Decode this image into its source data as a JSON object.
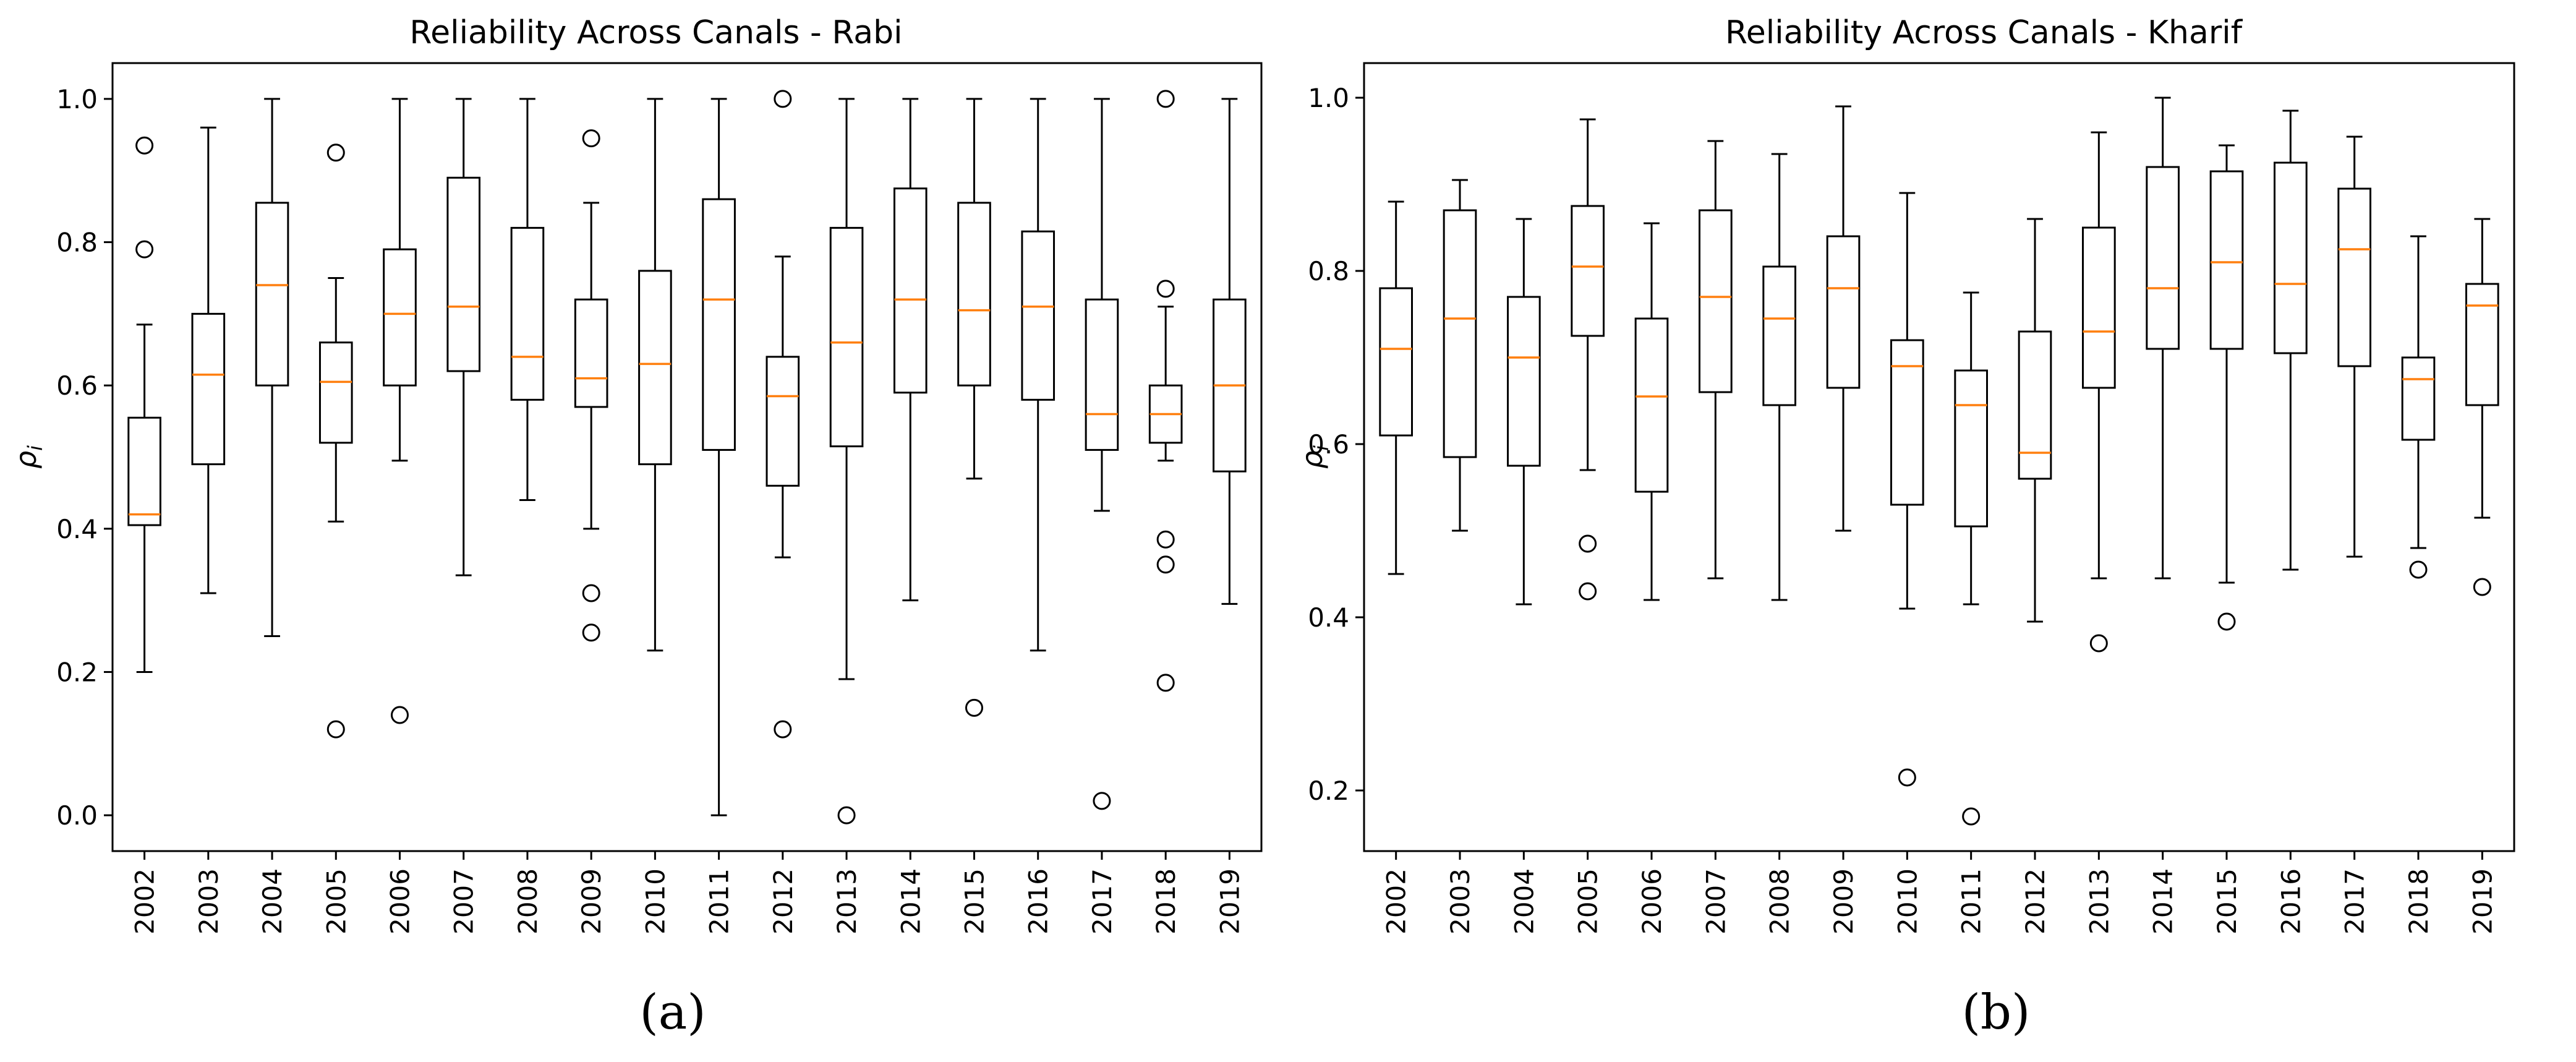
{
  "captions": {
    "left": "(a)",
    "right": "(b)"
  },
  "colors": {
    "box": "#000000",
    "median": "#ff7f0e",
    "background": "#ffffff"
  },
  "chart_data": [
    {
      "type": "boxplot",
      "title": "Reliability Across Canals - Rabi",
      "xlabel": "",
      "ylabel": "ρ_i",
      "ylabel_main": "ρ",
      "ylabel_sub": "i",
      "ylim": [
        -0.05,
        1.05
      ],
      "yticks": [
        0.0,
        0.2,
        0.4,
        0.6,
        0.8,
        1.0
      ],
      "ytick_labels": [
        "0.0",
        "0.2",
        "0.4",
        "0.6",
        "0.8",
        "1.0"
      ],
      "categories": [
        "2002",
        "2003",
        "2004",
        "2005",
        "2006",
        "2007",
        "2008",
        "2009",
        "2010",
        "2011",
        "2012",
        "2013",
        "2014",
        "2015",
        "2016",
        "2017",
        "2018",
        "2019"
      ],
      "boxes": [
        {
          "year": "2002",
          "whislo": 0.2,
          "q1": 0.405,
          "med": 0.42,
          "q3": 0.555,
          "whishi": 0.685,
          "fliers": [
            0.79,
            0.935
          ]
        },
        {
          "year": "2003",
          "whislo": 0.31,
          "q1": 0.49,
          "med": 0.615,
          "q3": 0.7,
          "whishi": 0.96,
          "fliers": []
        },
        {
          "year": "2004",
          "whislo": 0.25,
          "q1": 0.6,
          "med": 0.74,
          "q3": 0.855,
          "whishi": 1.0,
          "fliers": []
        },
        {
          "year": "2005",
          "whislo": 0.41,
          "q1": 0.52,
          "med": 0.605,
          "q3": 0.66,
          "whishi": 0.75,
          "fliers": [
            0.12,
            0.925
          ]
        },
        {
          "year": "2006",
          "whislo": 0.495,
          "q1": 0.6,
          "med": 0.7,
          "q3": 0.79,
          "whishi": 1.0,
          "fliers": [
            0.14
          ]
        },
        {
          "year": "2007",
          "whislo": 0.335,
          "q1": 0.62,
          "med": 0.71,
          "q3": 0.89,
          "whishi": 1.0,
          "fliers": []
        },
        {
          "year": "2008",
          "whislo": 0.44,
          "q1": 0.58,
          "med": 0.64,
          "q3": 0.82,
          "whishi": 1.0,
          "fliers": []
        },
        {
          "year": "2009",
          "whislo": 0.4,
          "q1": 0.57,
          "med": 0.61,
          "q3": 0.72,
          "whishi": 0.855,
          "fliers": [
            0.255,
            0.31,
            0.945
          ]
        },
        {
          "year": "2010",
          "whislo": 0.23,
          "q1": 0.49,
          "med": 0.63,
          "q3": 0.76,
          "whishi": 1.0,
          "fliers": []
        },
        {
          "year": "2011",
          "whislo": 0.0,
          "q1": 0.51,
          "med": 0.72,
          "q3": 0.86,
          "whishi": 1.0,
          "fliers": []
        },
        {
          "year": "2012",
          "whislo": 0.36,
          "q1": 0.46,
          "med": 0.585,
          "q3": 0.64,
          "whishi": 0.78,
          "fliers": [
            0.12,
            1.0
          ]
        },
        {
          "year": "2013",
          "whislo": 0.19,
          "q1": 0.515,
          "med": 0.66,
          "q3": 0.82,
          "whishi": 1.0,
          "fliers": [
            0.0
          ]
        },
        {
          "year": "2014",
          "whislo": 0.3,
          "q1": 0.59,
          "med": 0.72,
          "q3": 0.875,
          "whishi": 1.0,
          "fliers": []
        },
        {
          "year": "2015",
          "whislo": 0.47,
          "q1": 0.6,
          "med": 0.705,
          "q3": 0.855,
          "whishi": 1.0,
          "fliers": [
            0.15
          ]
        },
        {
          "year": "2016",
          "whislo": 0.23,
          "q1": 0.58,
          "med": 0.71,
          "q3": 0.815,
          "whishi": 1.0,
          "fliers": []
        },
        {
          "year": "2017",
          "whislo": 0.425,
          "q1": 0.51,
          "med": 0.56,
          "q3": 0.72,
          "whishi": 1.0,
          "fliers": [
            0.02
          ]
        },
        {
          "year": "2018",
          "whislo": 0.495,
          "q1": 0.52,
          "med": 0.56,
          "q3": 0.6,
          "whishi": 0.71,
          "fliers": [
            0.185,
            0.35,
            0.385,
            0.735,
            1.0
          ]
        },
        {
          "year": "2019",
          "whislo": 0.295,
          "q1": 0.48,
          "med": 0.6,
          "q3": 0.72,
          "whishi": 1.0,
          "fliers": []
        }
      ]
    },
    {
      "type": "boxplot",
      "title": "Reliability Across Canals - Kharif",
      "xlabel": "",
      "ylabel": "ρ_i",
      "ylabel_main": "ρ",
      "ylabel_sub": "i",
      "ylim": [
        0.13,
        1.04
      ],
      "yticks": [
        0.2,
        0.4,
        0.6,
        0.8,
        1.0
      ],
      "ytick_labels": [
        "0.2",
        "0.4",
        "0.6",
        "0.8",
        "1.0"
      ],
      "categories": [
        "2002",
        "2003",
        "2004",
        "2005",
        "2006",
        "2007",
        "2008",
        "2009",
        "2010",
        "2011",
        "2012",
        "2013",
        "2014",
        "2015",
        "2016",
        "2017",
        "2018",
        "2019"
      ],
      "boxes": [
        {
          "year": "2002",
          "whislo": 0.45,
          "q1": 0.61,
          "med": 0.71,
          "q3": 0.78,
          "whishi": 0.88,
          "fliers": []
        },
        {
          "year": "2003",
          "whislo": 0.5,
          "q1": 0.585,
          "med": 0.745,
          "q3": 0.87,
          "whishi": 0.905,
          "fliers": []
        },
        {
          "year": "2004",
          "whislo": 0.415,
          "q1": 0.575,
          "med": 0.7,
          "q3": 0.77,
          "whishi": 0.86,
          "fliers": []
        },
        {
          "year": "2005",
          "whislo": 0.57,
          "q1": 0.725,
          "med": 0.805,
          "q3": 0.875,
          "whishi": 0.975,
          "fliers": [
            0.43,
            0.485
          ]
        },
        {
          "year": "2006",
          "whislo": 0.42,
          "q1": 0.545,
          "med": 0.655,
          "q3": 0.745,
          "whishi": 0.855,
          "fliers": []
        },
        {
          "year": "2007",
          "whislo": 0.445,
          "q1": 0.66,
          "med": 0.77,
          "q3": 0.87,
          "whishi": 0.95,
          "fliers": []
        },
        {
          "year": "2008",
          "whislo": 0.42,
          "q1": 0.645,
          "med": 0.745,
          "q3": 0.805,
          "whishi": 0.935,
          "fliers": []
        },
        {
          "year": "2009",
          "whislo": 0.5,
          "q1": 0.665,
          "med": 0.78,
          "q3": 0.84,
          "whishi": 0.99,
          "fliers": []
        },
        {
          "year": "2010",
          "whislo": 0.41,
          "q1": 0.53,
          "med": 0.69,
          "q3": 0.72,
          "whishi": 0.89,
          "fliers": [
            0.215
          ]
        },
        {
          "year": "2011",
          "whislo": 0.415,
          "q1": 0.505,
          "med": 0.645,
          "q3": 0.685,
          "whishi": 0.775,
          "fliers": [
            0.17
          ]
        },
        {
          "year": "2012",
          "whislo": 0.395,
          "q1": 0.56,
          "med": 0.59,
          "q3": 0.73,
          "whishi": 0.86,
          "fliers": []
        },
        {
          "year": "2013",
          "whislo": 0.445,
          "q1": 0.665,
          "med": 0.73,
          "q3": 0.85,
          "whishi": 0.96,
          "fliers": [
            0.37
          ]
        },
        {
          "year": "2014",
          "whislo": 0.445,
          "q1": 0.71,
          "med": 0.78,
          "q3": 0.92,
          "whishi": 1.0,
          "fliers": []
        },
        {
          "year": "2015",
          "whislo": 0.44,
          "q1": 0.71,
          "med": 0.81,
          "q3": 0.915,
          "whishi": 0.945,
          "fliers": [
            0.395
          ]
        },
        {
          "year": "2016",
          "whislo": 0.455,
          "q1": 0.705,
          "med": 0.785,
          "q3": 0.925,
          "whishi": 0.985,
          "fliers": []
        },
        {
          "year": "2017",
          "whislo": 0.47,
          "q1": 0.69,
          "med": 0.825,
          "q3": 0.895,
          "whishi": 0.955,
          "fliers": []
        },
        {
          "year": "2018",
          "whislo": 0.48,
          "q1": 0.605,
          "med": 0.675,
          "q3": 0.7,
          "whishi": 0.84,
          "fliers": [
            0.455
          ]
        },
        {
          "year": "2019",
          "whislo": 0.515,
          "q1": 0.645,
          "med": 0.76,
          "q3": 0.785,
          "whishi": 0.86,
          "fliers": [
            0.435
          ]
        }
      ]
    }
  ]
}
